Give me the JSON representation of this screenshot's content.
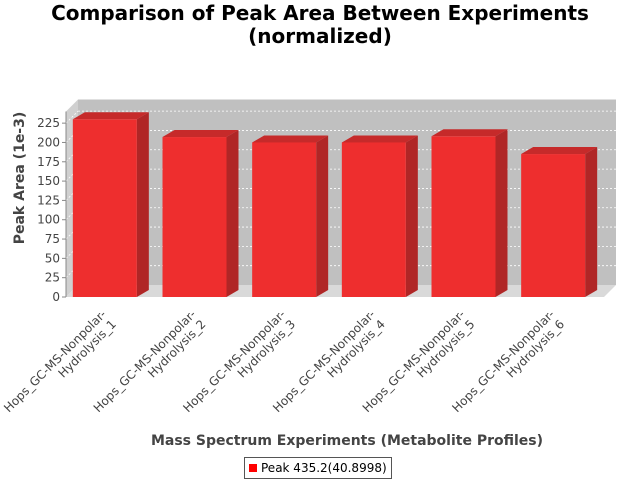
{
  "chart_data": {
    "type": "bar",
    "title_lines": [
      "Comparison of Peak Area Between Experiments",
      "(normalized)"
    ],
    "xlabel": "Mass Spectrum Experiments (Metabolite Profiles)",
    "ylabel": "Peak Area (1e-3)",
    "ylim": [
      0,
      240
    ],
    "yticks": [
      0,
      25,
      50,
      75,
      100,
      125,
      150,
      175,
      200,
      225
    ],
    "grid": true,
    "categories": [
      "Hops_GC-MS-Nonpolar-Hydrolysis_1",
      "Hops_GC-MS-Nonpolar-Hydrolysis_2",
      "Hops_GC-MS-Nonpolar-Hydrolysis_3",
      "Hops_GC-MS-Nonpolar-Hydrolysis_4",
      "Hops_GC-MS-Nonpolar-Hydrolysis_5",
      "Hops_GC-MS-Nonpolar-Hydrolysis_6"
    ],
    "category_label_lines": [
      [
        "Hops_GC-MS-Nonpolar-",
        "Hydrolysis_1"
      ],
      [
        "Hops_GC-MS-Nonpolar-",
        "Hydrolysis_2"
      ],
      [
        "Hops_GC-MS-Nonpolar-",
        "Hydrolysis_3"
      ],
      [
        "Hops_GC-MS-Nonpolar-",
        "Hydrolysis_4"
      ],
      [
        "Hops_GC-MS-Nonpolar-",
        "Hydrolysis_5"
      ],
      [
        "Hops_GC-MS-Nonpolar-",
        "Hydrolysis_6"
      ]
    ],
    "series": [
      {
        "name": "Peak 435.2(40.8998)",
        "values": [
          230,
          207,
          200,
          200,
          208,
          185
        ]
      }
    ],
    "legend_position": "bottom-center",
    "colors": {
      "bar_front": "#ee2e2e",
      "bar_top": "#c62a2a",
      "bar_side": "#b02626",
      "legend_swatch": "#ff0000",
      "plot_back": "#c0c0c0",
      "plot_floor": "#d9d9d9"
    }
  }
}
